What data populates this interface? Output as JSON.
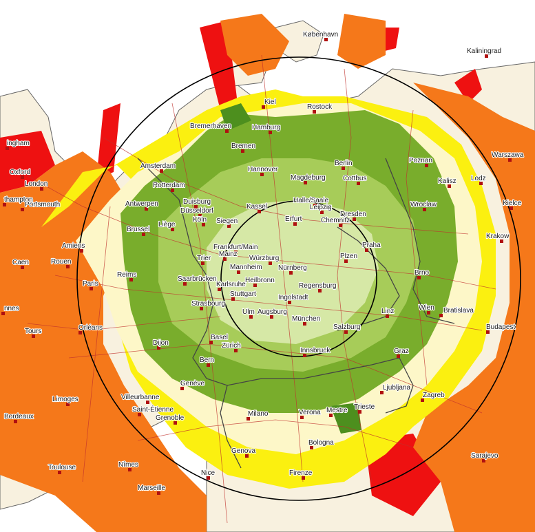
{
  "map": {
    "colors": {
      "sea": "#ffffff",
      "land": "#f8f1df",
      "red": "#ee1111",
      "orange": "#f5781a",
      "light_orange": "#fba632",
      "yellow": "#fbf010",
      "cream": "#fdf7c8",
      "green_dark": "#4d8f1e",
      "green": "#79ad2c",
      "green_light": "#a7cc59",
      "green_pale": "#d6e8a6",
      "roads": "#c0302c",
      "borders": "#444444",
      "rings": "#000000"
    },
    "cities": [
      {
        "name": "København"
      },
      {
        "name": "Kaliningrad"
      },
      {
        "name": "Kiel"
      },
      {
        "name": "Rostock"
      },
      {
        "name": "Bremerhaven"
      },
      {
        "name": "Hamburg"
      },
      {
        "name": "Bremen"
      },
      {
        "name": "ingham"
      },
      {
        "name": "Amsterdam"
      },
      {
        "name": "Hannover"
      },
      {
        "name": "Magdeburg"
      },
      {
        "name": "Berlin"
      },
      {
        "name": "Poznan"
      },
      {
        "name": "Warszawa"
      },
      {
        "name": "Oxford"
      },
      {
        "name": "London"
      },
      {
        "name": "Rotterdam"
      },
      {
        "name": "Cottbus"
      },
      {
        "name": "Kalisz"
      },
      {
        "name": "Lodz"
      },
      {
        "name": "Antwerpen"
      },
      {
        "name": "Duisburg"
      },
      {
        "name": "Düsseldorf"
      },
      {
        "name": "Kassel"
      },
      {
        "name": "Halle/Saale"
      },
      {
        "name": "Leipzig"
      },
      {
        "name": "thampton"
      },
      {
        "name": "Portsmouth"
      },
      {
        "name": "Dresden"
      },
      {
        "name": "Wroclaw"
      },
      {
        "name": "Kielce"
      },
      {
        "name": "Brussel"
      },
      {
        "name": "Liège"
      },
      {
        "name": "Köln"
      },
      {
        "name": "Siegen"
      },
      {
        "name": "Erfurt"
      },
      {
        "name": "Chemnitz"
      },
      {
        "name": "Krakow"
      },
      {
        "name": "Amiens"
      },
      {
        "name": "Frankfurt/Main"
      },
      {
        "name": "Mainz"
      },
      {
        "name": "Praha"
      },
      {
        "name": "Caen"
      },
      {
        "name": "Rouen"
      },
      {
        "name": "Trier"
      },
      {
        "name": "Würzburg"
      },
      {
        "name": "Mannheim"
      },
      {
        "name": "Nürnberg"
      },
      {
        "name": "Plzen"
      },
      {
        "name": "Paris"
      },
      {
        "name": "Reims"
      },
      {
        "name": "Saarbrücken"
      },
      {
        "name": "Heilbronn"
      },
      {
        "name": "Karlsruhe"
      },
      {
        "name": "Regensburg"
      },
      {
        "name": "Brno"
      },
      {
        "name": "Stuttgart"
      },
      {
        "name": "Ingolstadt"
      },
      {
        "name": "Strasbourg"
      },
      {
        "name": "nnes"
      },
      {
        "name": "Ulm"
      },
      {
        "name": "Augsburg"
      },
      {
        "name": "Linz"
      },
      {
        "name": "Wien"
      },
      {
        "name": "Bratislava"
      },
      {
        "name": "Tours"
      },
      {
        "name": "Orléans"
      },
      {
        "name": "München"
      },
      {
        "name": "Salzburg"
      },
      {
        "name": "Dijon"
      },
      {
        "name": "Basel"
      },
      {
        "name": "Zürich"
      },
      {
        "name": "Budapest"
      },
      {
        "name": "Bern"
      },
      {
        "name": "Innsbruck"
      },
      {
        "name": "Graz"
      },
      {
        "name": "Genève"
      },
      {
        "name": "Ljubljana"
      },
      {
        "name": "Zagreb"
      },
      {
        "name": "Limoges"
      },
      {
        "name": "Villeurbanne"
      },
      {
        "name": "Saint-Étienne"
      },
      {
        "name": "Milano"
      },
      {
        "name": "Verona"
      },
      {
        "name": "Mestre"
      },
      {
        "name": "Trieste"
      },
      {
        "name": "Bordeaux"
      },
      {
        "name": "Grenoble"
      },
      {
        "name": "Bologna"
      },
      {
        "name": "Genova"
      },
      {
        "name": "Sarajevo"
      },
      {
        "name": "Toulouse"
      },
      {
        "name": "Nîmes"
      },
      {
        "name": "Nice"
      },
      {
        "name": "Firenze"
      },
      {
        "name": "Marseille"
      }
    ]
  }
}
